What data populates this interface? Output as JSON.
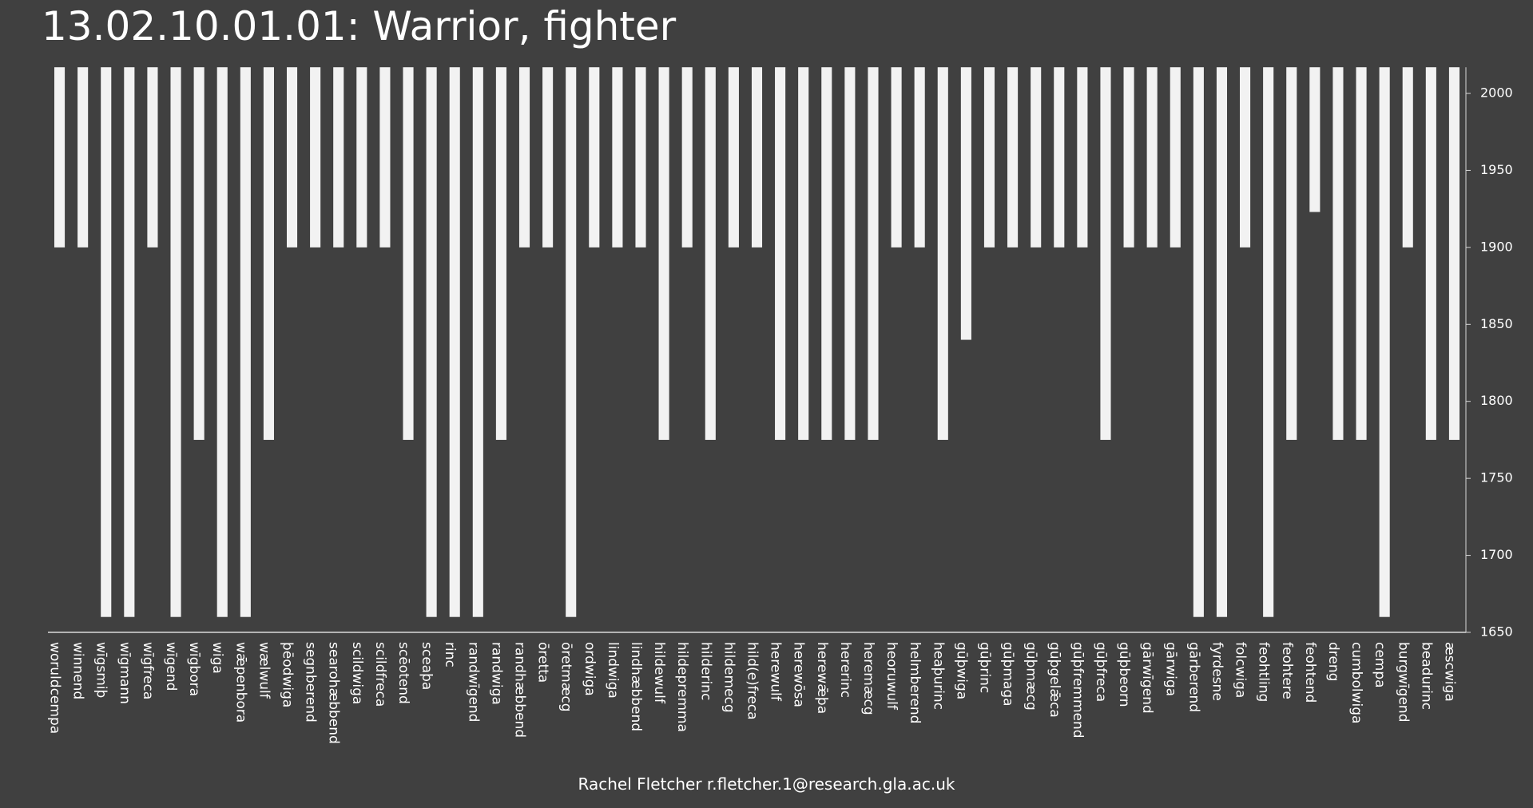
{
  "title": "13.02.10.01.01: Warrior, fighter",
  "credit": "Rachel Fletcher r.fletcher.1@research.gla.ac.uk",
  "colors": {
    "background": "#404040",
    "bar": "#f2f2f2",
    "axis": "#d9d9d9",
    "text": "#ffffff"
  },
  "chart_data": {
    "type": "bar",
    "orientation": "floating-vertical",
    "title": "13.02.10.01.01: Warrior, fighter",
    "ylim": [
      1650,
      2000
    ],
    "y_axis_position": "right",
    "y_ticks": [
      2000,
      1950,
      1900,
      1850,
      1800,
      1750,
      1700,
      1650
    ],
    "grid": false,
    "legend": "none",
    "bar_top": 2017,
    "categories": [
      "woruldcempa",
      "winnend",
      "wīgsmiþ",
      "wīgmann",
      "wīgfreca",
      "wīgend",
      "wīgbora",
      "wiga",
      "wǣpenbora",
      "wælwulf",
      "þēodwiga",
      "segnberend",
      "searohæbbend",
      "scildwiga",
      "scildfreca",
      "scēotend",
      "sceaþa",
      "rinc",
      "randwīgend",
      "randwiga",
      "randhæbbend",
      "ōretta",
      "ōretmæcg",
      "ordwiga",
      "lindwiga",
      "lindhæbbend",
      "hildewulf",
      "hildepremma",
      "hilderinc",
      "hildemecg",
      "hild(e)freca",
      "herewulf",
      "herewōsa",
      "herewǣþa",
      "hererinc",
      "heremæcg",
      "heoruwulf",
      "helmberend",
      "heaþurinc",
      "gūþwiga",
      "gūþrinc",
      "gūþmaga",
      "gūþmæcg",
      "gūþgelǣca",
      "gūþfremmend",
      "gūþfreca",
      "gūþbeorn",
      "gārwīgend",
      "gārwiga",
      "gārberend",
      "fyrdesne",
      "folcwiga",
      "feohtling",
      "feohtere",
      "feohtend",
      "dreng",
      "cumbolwiga",
      "cempa",
      "burgwīgend",
      "beadurinc",
      "æscwiga"
    ],
    "start_values": [
      1900,
      1900,
      1660,
      1660,
      1900,
      1660,
      1775,
      1660,
      1660,
      1775,
      1900,
      1900,
      1900,
      1900,
      1900,
      1775,
      1660,
      1660,
      1660,
      1775,
      1900,
      1900,
      1660,
      1900,
      1900,
      1900,
      1775,
      1900,
      1775,
      1900,
      1900,
      1775,
      1775,
      1775,
      1775,
      1775,
      1900,
      1900,
      1775,
      1840,
      1900,
      1900,
      1900,
      1900,
      1900,
      1775,
      1900,
      1900,
      1900,
      1660,
      1660,
      1900,
      1660,
      1775,
      1923,
      1775,
      1775,
      1660,
      1900,
      1775,
      1775
    ]
  }
}
